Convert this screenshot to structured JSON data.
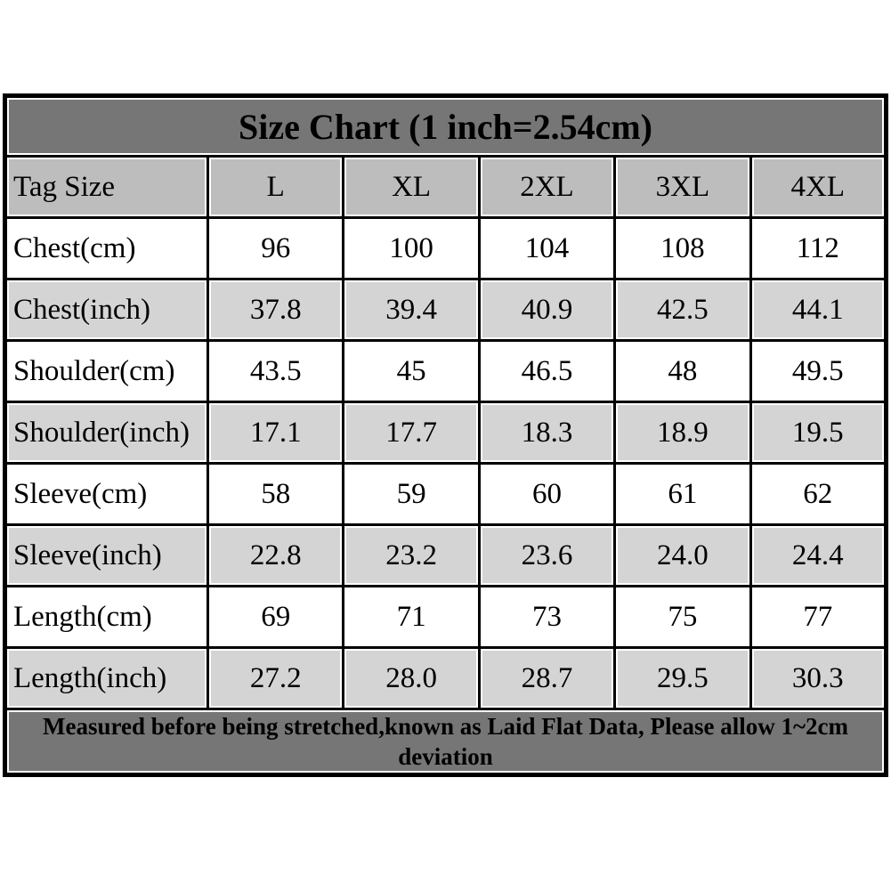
{
  "title": "Size Chart (1 inch=2.54cm)",
  "colors": {
    "dark_band": "#767676",
    "header_gray": "#bdbdbd",
    "shaded_row_gray": "#d4d4d4",
    "grid_line": "#000000",
    "title_text": "#ffffff",
    "body_text": "#000000",
    "page_background": "#ffffff"
  },
  "table": {
    "header": [
      "Tag Size",
      "L",
      "XL",
      "2XL",
      "3XL",
      "4XL"
    ],
    "rows": [
      {
        "label": "Chest(cm)",
        "values": [
          "96",
          "100",
          "104",
          "108",
          "112"
        ]
      },
      {
        "label": "Chest(inch)",
        "values": [
          "37.8",
          "39.4",
          "40.9",
          "42.5",
          "44.1"
        ]
      },
      {
        "label": "Shoulder(cm)",
        "values": [
          "43.5",
          "45",
          "46.5",
          "48",
          "49.5"
        ]
      },
      {
        "label": "Shoulder(inch)",
        "values": [
          "17.1",
          "17.7",
          "18.3",
          "18.9",
          "19.5"
        ]
      },
      {
        "label": "Sleeve(cm)",
        "values": [
          "58",
          "59",
          "60",
          "61",
          "62"
        ]
      },
      {
        "label": "Sleeve(inch)",
        "values": [
          "22.8",
          "23.2",
          "23.6",
          "24.0",
          "24.4"
        ]
      },
      {
        "label": "Length(cm)",
        "values": [
          "69",
          "71",
          "73",
          "75",
          "77"
        ]
      },
      {
        "label": "Length(inch)",
        "values": [
          "27.2",
          "28.0",
          "28.7",
          "29.5",
          "30.3"
        ]
      }
    ],
    "footer_lines": [
      "Measured before being stretched,known as Laid Flat Data, Please allow 1~2cm",
      "deviation"
    ]
  }
}
